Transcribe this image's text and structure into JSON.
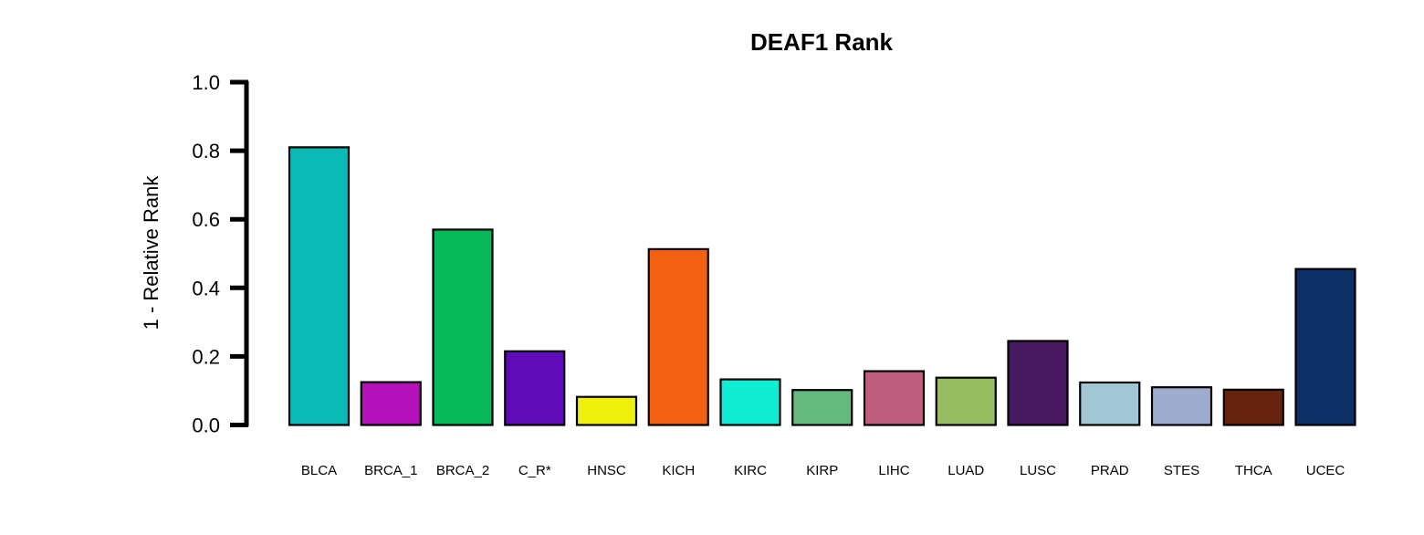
{
  "chart_data": {
    "type": "bar",
    "title": "DEAF1 Rank",
    "xlabel": "",
    "ylabel": "1 - Relative Rank",
    "ylim": [
      0,
      1
    ],
    "yticks": [
      "0.0",
      "0.2",
      "0.4",
      "0.6",
      "0.8",
      "1.0"
    ],
    "grid": false,
    "categories": [
      "BLCA",
      "BRCA_1",
      "BRCA_2",
      "C_R*",
      "HNSC",
      "KICH",
      "KIRC",
      "KIRP",
      "LIHC",
      "LUAD",
      "LUSC",
      "PRAD",
      "STES",
      "THCA",
      "UCEC"
    ],
    "values": [
      0.81,
      0.125,
      0.57,
      0.215,
      0.082,
      0.513,
      0.133,
      0.102,
      0.157,
      0.138,
      0.245,
      0.124,
      0.11,
      0.103,
      0.455
    ],
    "colors": [
      "#0bbab4",
      "#b511bb",
      "#08b95a",
      "#5f0bb8",
      "#eef00d",
      "#f26111",
      "#10edd3",
      "#65bb7e",
      "#bf5f80",
      "#98bc61",
      "#471a5f",
      "#a2c6d4",
      "#9faccf",
      "#66240f",
      "#0e2f66"
    ]
  }
}
